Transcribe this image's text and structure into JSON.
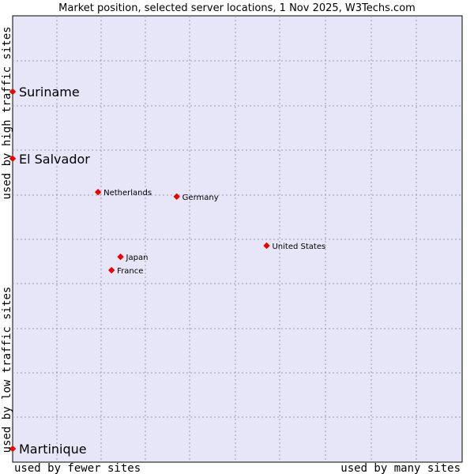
{
  "chart_data": {
    "type": "scatter",
    "title": "Market position, selected server locations, 1 Nov 2025, W3Techs.com",
    "xlabel_low": "used by fewer sites",
    "xlabel_high": "used by many sites",
    "ylabel_low": "used by low traffic sites",
    "ylabel_high": "used by high traffic sites",
    "xlim": [
      0,
      100
    ],
    "ylim": [
      0,
      100
    ],
    "grid": true,
    "points": [
      {
        "name": "Suriname",
        "x": 0,
        "y": 83,
        "size": "large"
      },
      {
        "name": "El Salvador",
        "x": 0,
        "y": 68,
        "size": "large"
      },
      {
        "name": "Netherlands",
        "x": 19,
        "y": 60.5,
        "size": "small"
      },
      {
        "name": "Germany",
        "x": 36.5,
        "y": 59.5,
        "size": "small"
      },
      {
        "name": "United States",
        "x": 56.5,
        "y": 48.5,
        "size": "small"
      },
      {
        "name": "Japan",
        "x": 24,
        "y": 46,
        "size": "small"
      },
      {
        "name": "France",
        "x": 22,
        "y": 43,
        "size": "small"
      },
      {
        "name": "Martinique",
        "x": 0,
        "y": 3,
        "size": "large"
      }
    ]
  },
  "colors": {
    "plot_bg": "#e6e6f8",
    "border": "#000000",
    "marker": "#ee0000"
  }
}
